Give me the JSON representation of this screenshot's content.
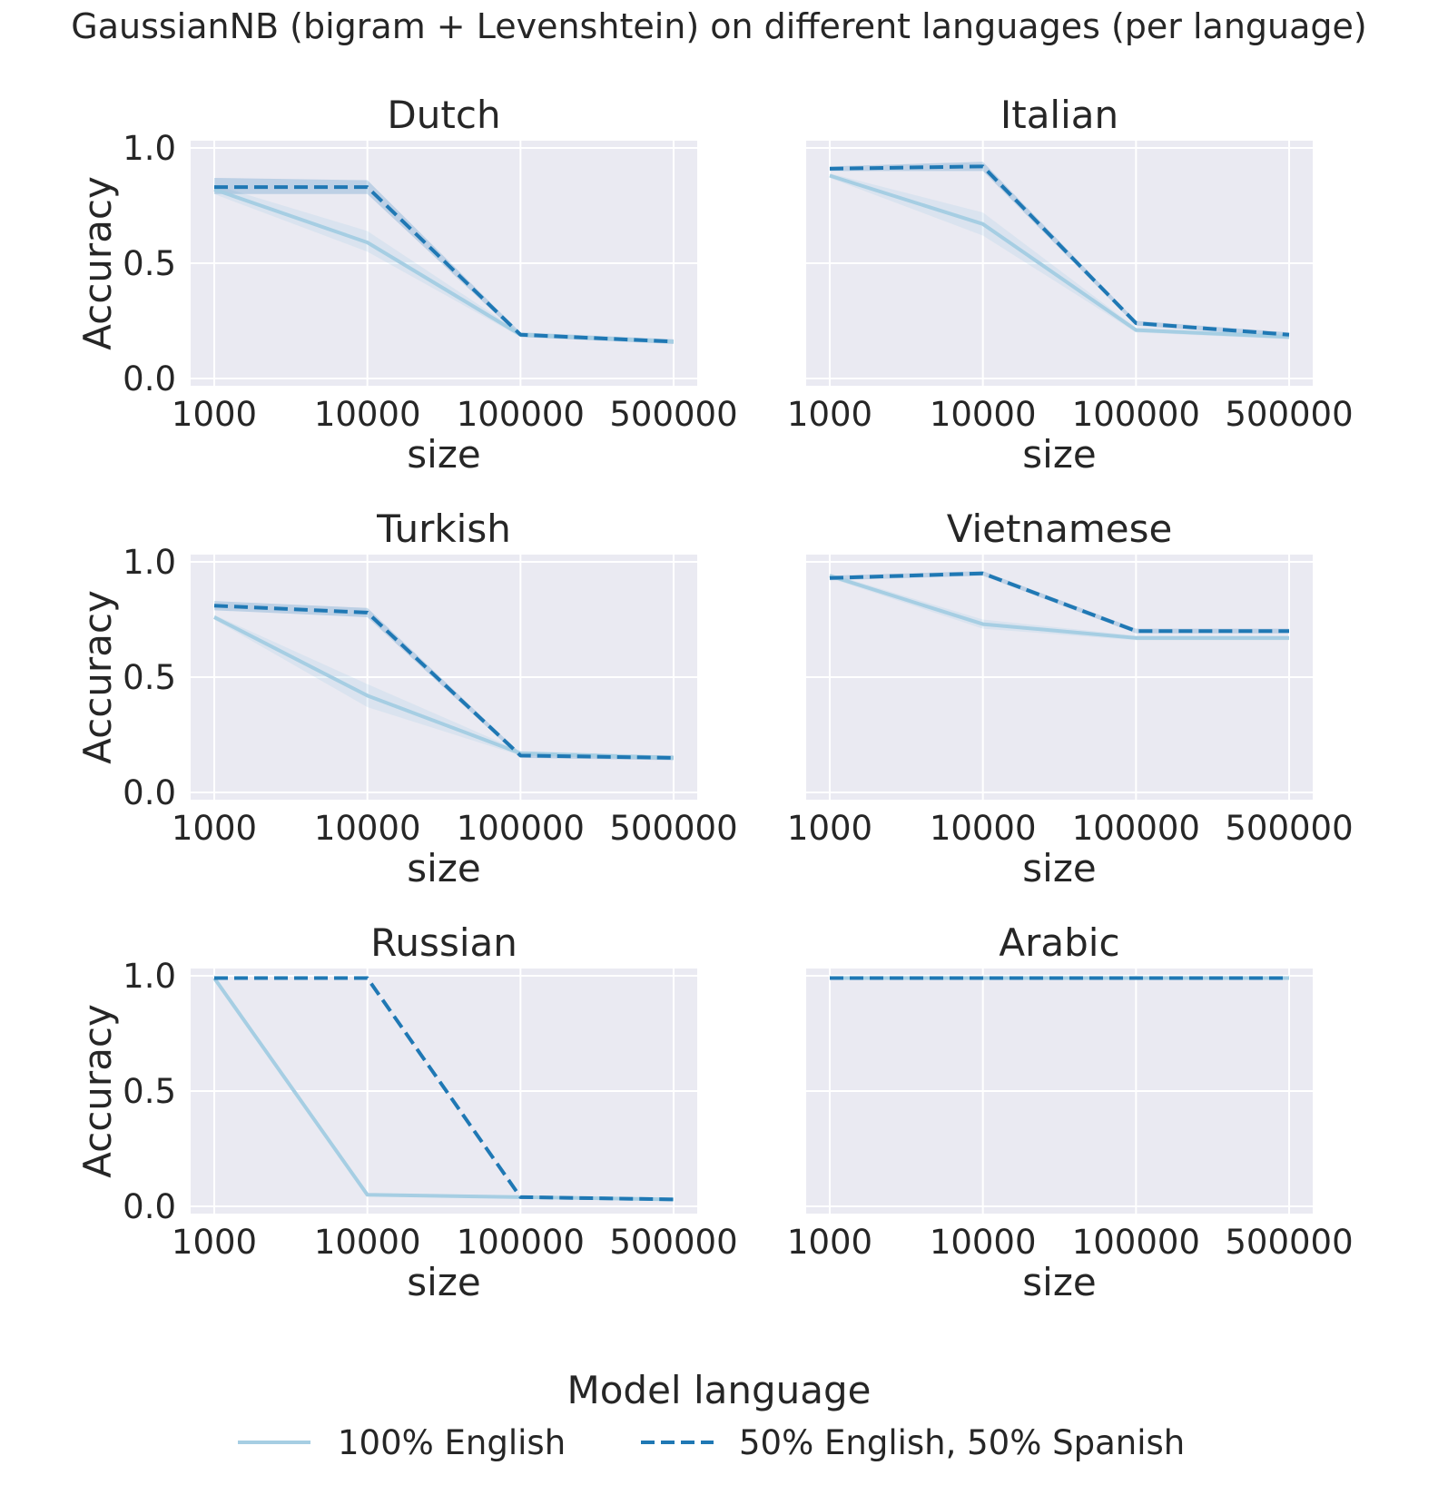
{
  "title": "GaussianNB (bigram + Levenshtein) on different languages (per language)",
  "legend": {
    "title": "Model language",
    "entries": [
      {
        "label": "100% English",
        "color": "#a6cee3",
        "style": "solid"
      },
      {
        "label": "50% English, 50% Spanish",
        "color": "#1f78b4",
        "style": "dashed"
      }
    ]
  },
  "colors": {
    "axes_background": "#eaeaf2",
    "grid": "#ffffff",
    "band_light": "#a6cee3",
    "band_dark": "#1f78b4"
  },
  "chart_data": [
    {
      "type": "line",
      "title": "Dutch",
      "xlabel": "size",
      "ylabel": "Accuracy",
      "x_categories": [
        "1000",
        "10000",
        "100000",
        "500000"
      ],
      "ylim": [
        0,
        1
      ],
      "yticks": [
        "0.0",
        "0.5",
        "1.0"
      ],
      "grid": true,
      "series": [
        {
          "name": "100% English",
          "values": [
            0.82,
            0.59,
            0.19,
            0.16
          ],
          "ci_low": [
            0.8,
            0.55,
            0.18,
            0.15
          ],
          "ci_high": [
            0.84,
            0.64,
            0.2,
            0.17
          ]
        },
        {
          "name": "50% English, 50% Spanish",
          "values": [
            0.83,
            0.83,
            0.19,
            0.16
          ],
          "ci_low": [
            0.8,
            0.8,
            0.18,
            0.15
          ],
          "ci_high": [
            0.87,
            0.86,
            0.2,
            0.17
          ]
        }
      ]
    },
    {
      "type": "line",
      "title": "Italian",
      "xlabel": "size",
      "ylabel": "",
      "x_categories": [
        "1000",
        "10000",
        "100000",
        "500000"
      ],
      "ylim": [
        0,
        1
      ],
      "yticks": [],
      "grid": true,
      "series": [
        {
          "name": "100% English",
          "values": [
            0.88,
            0.67,
            0.21,
            0.18
          ],
          "ci_low": [
            0.87,
            0.62,
            0.2,
            0.17
          ],
          "ci_high": [
            0.89,
            0.72,
            0.22,
            0.19
          ]
        },
        {
          "name": "50% English, 50% Spanish",
          "values": [
            0.91,
            0.92,
            0.24,
            0.19
          ],
          "ci_low": [
            0.9,
            0.9,
            0.23,
            0.18
          ],
          "ci_high": [
            0.92,
            0.94,
            0.25,
            0.2
          ]
        }
      ]
    },
    {
      "type": "line",
      "title": "Turkish",
      "xlabel": "size",
      "ylabel": "Accuracy",
      "x_categories": [
        "1000",
        "10000",
        "100000",
        "500000"
      ],
      "ylim": [
        0,
        1
      ],
      "yticks": [
        "0.0",
        "0.5",
        "1.0"
      ],
      "grid": true,
      "series": [
        {
          "name": "100% English",
          "values": [
            0.76,
            0.42,
            0.17,
            0.15
          ],
          "ci_low": [
            0.75,
            0.37,
            0.16,
            0.14
          ],
          "ci_high": [
            0.77,
            0.47,
            0.18,
            0.16
          ]
        },
        {
          "name": "50% English, 50% Spanish",
          "values": [
            0.81,
            0.78,
            0.16,
            0.15
          ],
          "ci_low": [
            0.79,
            0.76,
            0.15,
            0.14
          ],
          "ci_high": [
            0.83,
            0.8,
            0.17,
            0.16
          ]
        }
      ]
    },
    {
      "type": "line",
      "title": "Vietnamese",
      "xlabel": "size",
      "ylabel": "",
      "x_categories": [
        "1000",
        "10000",
        "100000",
        "500000"
      ],
      "ylim": [
        0,
        1
      ],
      "yticks": [],
      "grid": true,
      "series": [
        {
          "name": "100% English",
          "values": [
            0.94,
            0.73,
            0.67,
            0.67
          ],
          "ci_low": [
            0.93,
            0.71,
            0.66,
            0.66
          ],
          "ci_high": [
            0.95,
            0.75,
            0.68,
            0.68
          ]
        },
        {
          "name": "50% English, 50% Spanish",
          "values": [
            0.93,
            0.95,
            0.7,
            0.7
          ],
          "ci_low": [
            0.92,
            0.94,
            0.69,
            0.69
          ],
          "ci_high": [
            0.94,
            0.96,
            0.71,
            0.71
          ]
        }
      ]
    },
    {
      "type": "line",
      "title": "Russian",
      "xlabel": "size",
      "ylabel": "Accuracy",
      "x_categories": [
        "1000",
        "10000",
        "100000",
        "500000"
      ],
      "ylim": [
        0,
        1
      ],
      "yticks": [
        "0.0",
        "0.5",
        "1.0"
      ],
      "grid": true,
      "series": [
        {
          "name": "100% English",
          "values": [
            0.99,
            0.05,
            0.04,
            0.03
          ],
          "ci_low": [
            0.99,
            0.05,
            0.04,
            0.03
          ],
          "ci_high": [
            0.99,
            0.05,
            0.04,
            0.03
          ]
        },
        {
          "name": "50% English, 50% Spanish",
          "values": [
            0.99,
            0.99,
            0.04,
            0.03
          ],
          "ci_low": [
            0.99,
            0.99,
            0.04,
            0.03
          ],
          "ci_high": [
            0.99,
            0.99,
            0.04,
            0.03
          ]
        }
      ]
    },
    {
      "type": "line",
      "title": "Arabic",
      "xlabel": "size",
      "ylabel": "",
      "x_categories": [
        "1000",
        "10000",
        "100000",
        "500000"
      ],
      "ylim": [
        0,
        1
      ],
      "yticks": [],
      "grid": true,
      "series": [
        {
          "name": "100% English",
          "values": [
            0.99,
            0.99,
            0.99,
            0.99
          ],
          "ci_low": [
            0.99,
            0.99,
            0.99,
            0.99
          ],
          "ci_high": [
            0.99,
            0.99,
            0.99,
            0.99
          ]
        },
        {
          "name": "50% English, 50% Spanish",
          "values": [
            0.99,
            0.99,
            0.99,
            0.99
          ],
          "ci_low": [
            0.99,
            0.99,
            0.99,
            0.99
          ],
          "ci_high": [
            0.99,
            0.99,
            0.99,
            0.99
          ]
        }
      ]
    }
  ]
}
